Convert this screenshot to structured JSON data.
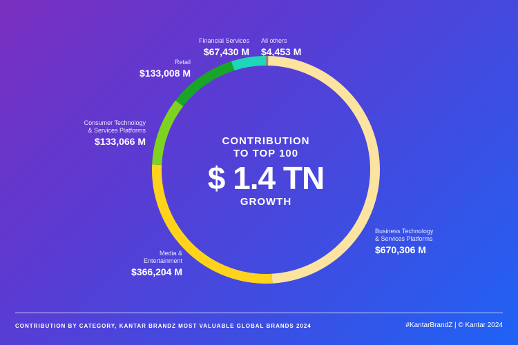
{
  "center": {
    "line1": "CONTRIBUTION",
    "line2": "TO TOP 100",
    "line3": "$ 1.4 TN",
    "line4": "GROWTH"
  },
  "chart_data": {
    "type": "pie",
    "donut": true,
    "start_angle_deg": 0,
    "slices": [
      {
        "name": "All others",
        "value": 4453,
        "value_label": "$4,453 M",
        "color": "#8a8a86"
      },
      {
        "name": "Business Technology & Services Platforms",
        "name_lines": [
          "Business Technology",
          "& Services Platforms"
        ],
        "value": 670306,
        "value_label": "$670,306 M",
        "color": "#fde3a0"
      },
      {
        "name": "Media & Entertainment",
        "name_lines": [
          "Media &",
          "Entertainment"
        ],
        "value": 366204,
        "value_label": "$366,204 M",
        "color": "#ffd21c"
      },
      {
        "name": "Consumer Technology & Services Platforms",
        "name_lines": [
          "Consumer Technology",
          "& Services Platforms"
        ],
        "value": 133066,
        "value_label": "$133,066 M",
        "color": "#7ed321"
      },
      {
        "name": "Retail",
        "value": 133008,
        "value_label": "$133,008 M",
        "color": "#19a526"
      },
      {
        "name": "Financial Services",
        "value": 67430,
        "value_label": "$67,430 M",
        "color": "#1ed6b8"
      }
    ]
  },
  "footer": {
    "caption": "CONTRIBUTION BY CATEGORY, KANTAR BRANDZ MOST VALUABLE GLOBAL BRANDS 2024",
    "credit": "#KantarBrandZ | © Kantar 2024"
  }
}
